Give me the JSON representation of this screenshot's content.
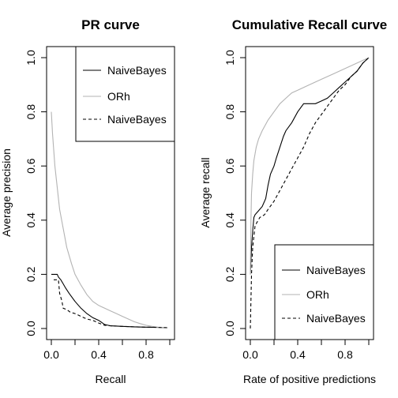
{
  "chart_data": [
    {
      "type": "line",
      "title": "PR curve",
      "xlabel": "Recall",
      "ylabel": "Average precision",
      "xlim": [
        0,
        1
      ],
      "ylim": [
        0,
        1
      ],
      "xticks": [
        "0.0",
        "0.4",
        "0.8"
      ],
      "yticks": [
        "0.0",
        "0.2",
        "0.4",
        "0.6",
        "0.8",
        "1.0"
      ],
      "legend_position": "top-right",
      "series": [
        {
          "name": "NaiveBayes",
          "color": "#000000",
          "dash": "solid",
          "x": [
            0.0,
            0.05,
            0.06,
            0.08,
            0.1,
            0.12,
            0.15,
            0.2,
            0.25,
            0.3,
            0.35,
            0.4,
            0.45,
            0.5,
            0.6,
            0.7,
            0.8,
            0.9,
            0.98
          ],
          "y": [
            0.2,
            0.2,
            0.19,
            0.18,
            0.165,
            0.15,
            0.13,
            0.1,
            0.075,
            0.055,
            0.04,
            0.03,
            0.015,
            0.01,
            0.008,
            0.006,
            0.005,
            0.004,
            0.003
          ]
        },
        {
          "name": "ORh",
          "color": "#b3b3b3",
          "dash": "solid",
          "x": [
            0.0,
            0.01,
            0.02,
            0.03,
            0.05,
            0.07,
            0.1,
            0.13,
            0.17,
            0.2,
            0.25,
            0.3,
            0.35,
            0.4,
            0.45,
            0.5,
            0.55,
            0.6,
            0.65,
            0.7,
            0.75,
            0.8,
            0.85,
            0.9,
            0.98
          ],
          "y": [
            0.8,
            0.72,
            0.66,
            0.6,
            0.52,
            0.44,
            0.37,
            0.3,
            0.24,
            0.2,
            0.16,
            0.125,
            0.1,
            0.085,
            0.075,
            0.065,
            0.055,
            0.045,
            0.035,
            0.025,
            0.018,
            0.012,
            0.008,
            0.005,
            0.003
          ]
        },
        {
          "name": "NaiveBayes",
          "color": "#000000",
          "dash": "dashed",
          "x": [
            0.02,
            0.06,
            0.07,
            0.09,
            0.1,
            0.13,
            0.16,
            0.2,
            0.25,
            0.3,
            0.35,
            0.4,
            0.45,
            0.5,
            0.6,
            0.7,
            0.8,
            0.9,
            0.98
          ],
          "y": [
            0.18,
            0.18,
            0.13,
            0.1,
            0.075,
            0.07,
            0.06,
            0.055,
            0.045,
            0.035,
            0.03,
            0.02,
            0.012,
            0.01,
            0.008,
            0.006,
            0.005,
            0.004,
            0.003
          ]
        }
      ]
    },
    {
      "type": "line",
      "title": "Cumulative Recall curve",
      "xlabel": "Rate of positive predictions",
      "ylabel": "Average recall",
      "xlim": [
        0,
        1
      ],
      "ylim": [
        0,
        1
      ],
      "xticks": [
        "0.0",
        "0.4",
        "0.8"
      ],
      "yticks": [
        "0.0",
        "0.2",
        "0.4",
        "0.6",
        "0.8",
        "1.0"
      ],
      "legend_position": "bottom-right",
      "series": [
        {
          "name": "NaiveBayes",
          "color": "#000000",
          "dash": "solid",
          "x": [
            0.0,
            0.01,
            0.02,
            0.03,
            0.04,
            0.06,
            0.1,
            0.13,
            0.15,
            0.17,
            0.2,
            0.22,
            0.25,
            0.28,
            0.3,
            0.35,
            0.4,
            0.45,
            0.5,
            0.55,
            0.6,
            0.65,
            0.7,
            0.75,
            0.8,
            0.85,
            0.9,
            0.95,
            1.0
          ],
          "y": [
            0.2,
            0.3,
            0.36,
            0.41,
            0.42,
            0.43,
            0.45,
            0.48,
            0.53,
            0.57,
            0.6,
            0.63,
            0.67,
            0.71,
            0.73,
            0.76,
            0.8,
            0.83,
            0.83,
            0.83,
            0.84,
            0.85,
            0.87,
            0.89,
            0.91,
            0.93,
            0.95,
            0.98,
            1.0
          ]
        },
        {
          "name": "ORh",
          "color": "#b3b3b3",
          "dash": "solid",
          "x": [
            0.0,
            0.005,
            0.01,
            0.02,
            0.03,
            0.05,
            0.07,
            0.1,
            0.15,
            0.2,
            0.25,
            0.3,
            0.35,
            0.4,
            0.5,
            0.6,
            0.7,
            0.8,
            0.9,
            1.0
          ],
          "y": [
            0.2,
            0.4,
            0.5,
            0.57,
            0.62,
            0.67,
            0.7,
            0.73,
            0.77,
            0.8,
            0.83,
            0.85,
            0.87,
            0.88,
            0.9,
            0.92,
            0.94,
            0.96,
            0.98,
            1.0
          ]
        },
        {
          "name": "NaiveBayes",
          "color": "#000000",
          "dash": "dashed",
          "x": [
            0.0,
            0.01,
            0.02,
            0.04,
            0.08,
            0.12,
            0.15,
            0.2,
            0.25,
            0.3,
            0.35,
            0.4,
            0.45,
            0.5,
            0.55,
            0.6,
            0.65,
            0.7,
            0.75,
            0.8,
            0.85,
            0.9,
            0.95,
            1.0
          ],
          "y": [
            0.0,
            0.2,
            0.3,
            0.38,
            0.41,
            0.42,
            0.44,
            0.47,
            0.51,
            0.55,
            0.59,
            0.63,
            0.67,
            0.72,
            0.76,
            0.79,
            0.82,
            0.85,
            0.88,
            0.9,
            0.93,
            0.95,
            0.98,
            1.0
          ]
        }
      ]
    }
  ]
}
